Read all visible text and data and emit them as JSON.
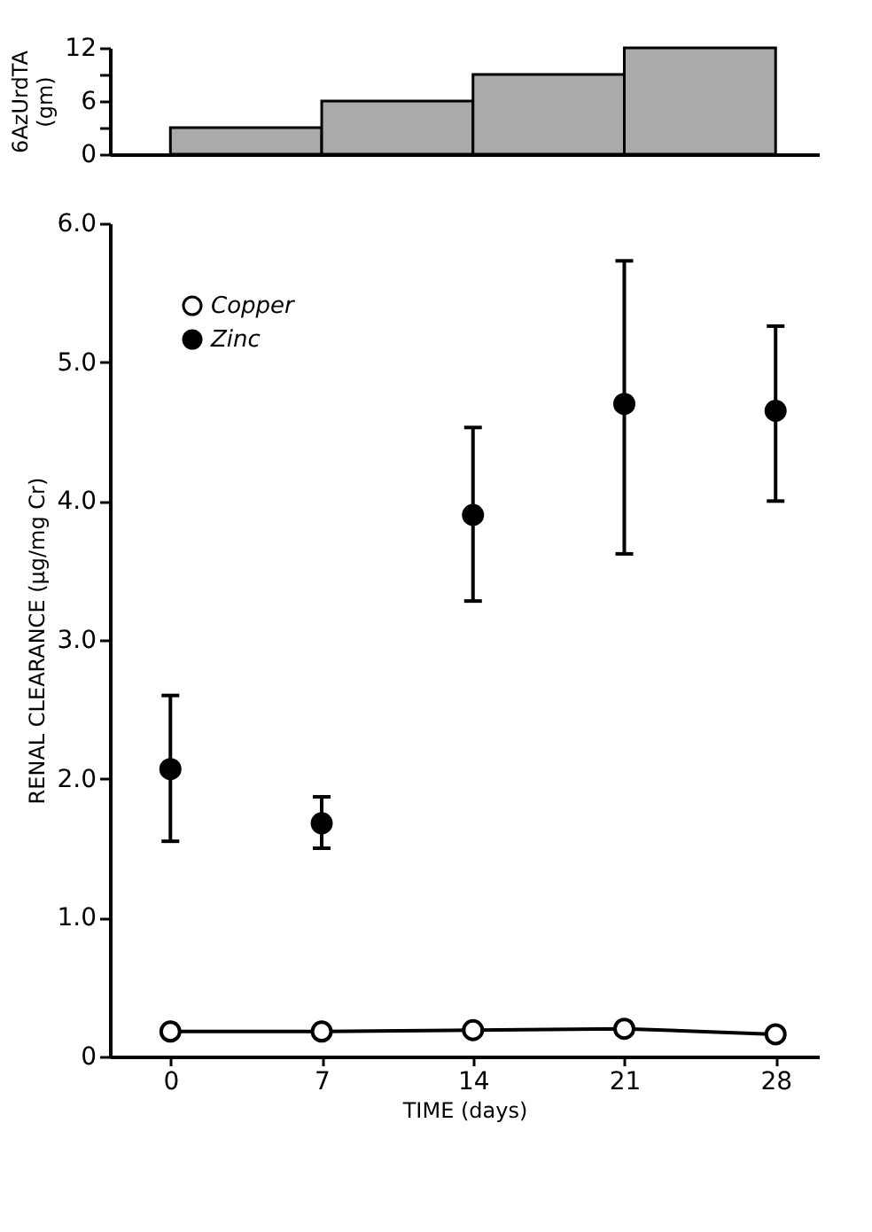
{
  "chart_data": [
    {
      "type": "bar",
      "ylabel": "6AzUrdTA (gm)",
      "x": [
        3.5,
        10.5,
        17.5,
        24.5
      ],
      "values": [
        3,
        6,
        9,
        12
      ],
      "color": "#aaaaaa",
      "xlim": [
        -2.8,
        30
      ],
      "ylim": [
        0,
        12
      ],
      "yticks": [
        0,
        {
          "value": 3,
          "label": null
        },
        6,
        {
          "value": 9,
          "label": null
        },
        12
      ],
      "tick_labels": "y",
      "grid": false,
      "legend": false
    },
    {
      "type": "scatter",
      "xlabel": "TIME (days)",
      "ylabel": "RENAL CLEARANCE (μg/mg Cr)",
      "x": [
        0,
        7,
        14,
        21,
        28
      ],
      "xlim": [
        -2.8,
        30
      ],
      "xticks": [
        0,
        7,
        14,
        21,
        28
      ],
      "ylim": [
        0,
        6
      ],
      "yticks": [
        0,
        {
          "value": 1,
          "label": "1.0"
        },
        {
          "value": 2,
          "label": "2.0"
        },
        {
          "value": 3,
          "label": "3.0"
        },
        {
          "value": 4,
          "label": "4.0"
        },
        {
          "value": 5,
          "label": "5.0"
        },
        {
          "value": 6,
          "label": "6.0"
        }
      ],
      "grid": false,
      "legend": "top left",
      "marker": "circle",
      "series": [
        {
          "name": "Copper",
          "type": "line",
          "color": "#ffffff",
          "values": [
            0.18,
            0.18,
            0.19,
            0.2,
            0.16
          ]
        },
        {
          "name": "Zinc",
          "type": "scatter",
          "color": "#000000",
          "values": [
            2.07,
            1.68,
            3.9,
            4.7,
            4.65
          ],
          "errors": [
            [
              1.55,
              2.6
            ],
            [
              1.5,
              1.87
            ],
            [
              3.28,
              4.53
            ],
            [
              3.62,
              5.73
            ],
            [
              4.0,
              5.26
            ]
          ]
        }
      ]
    }
  ]
}
